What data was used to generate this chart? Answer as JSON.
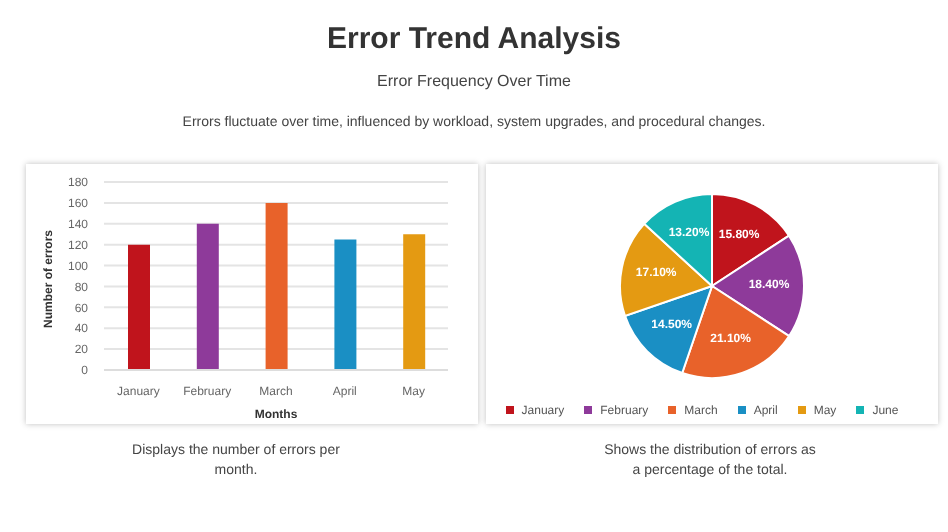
{
  "chart_data": [
    {
      "type": "bar",
      "title": "Error Trend Analysis",
      "subtitle": "Error Frequency Over Time",
      "annotations": [
        "Errors fluctuate over time, influenced by workload, system upgrades, and procedural changes.",
        "Displays the number of errors per month."
      ],
      "xlabel": "Months",
      "ylabel": "Number of errors",
      "categories": [
        "January",
        "February",
        "March",
        "April",
        "May"
      ],
      "values": [
        120,
        140,
        160,
        125,
        130
      ],
      "colors": [
        "#c0141c",
        "#8e3a9a",
        "#e8622a",
        "#1a8fc4",
        "#e49a12"
      ],
      "ylim": [
        0,
        180
      ],
      "yticks": [
        0,
        20,
        40,
        60,
        80,
        100,
        120,
        140,
        160,
        180
      ],
      "grid": "y"
    },
    {
      "type": "pie",
      "annotations": [
        "Shows the distribution of errors as a percentage of the total."
      ],
      "categories": [
        "January",
        "February",
        "March",
        "April",
        "May",
        "June"
      ],
      "values": [
        15.8,
        18.4,
        21.1,
        14.5,
        17.1,
        13.2
      ],
      "value_labels": [
        "15.80%",
        "18.40%",
        "21.10%",
        "14.50%",
        "17.10%",
        "13.20%"
      ],
      "colors": [
        "#c0141c",
        "#8e3a9a",
        "#e8622a",
        "#1a8fc4",
        "#e49a12",
        "#14b4b4"
      ],
      "legend": "bottom"
    }
  ]
}
